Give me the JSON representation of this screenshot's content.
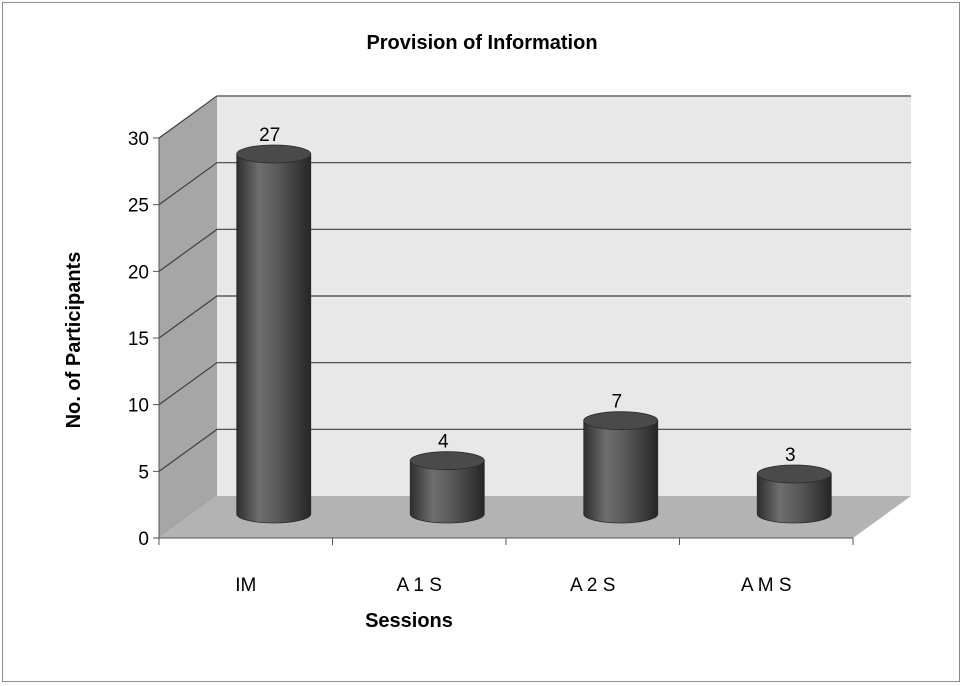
{
  "chart_data": {
    "type": "bar",
    "style": "3d-cylinder",
    "title": "Provision of Information",
    "xlabel": "Sessions",
    "ylabel": "No. of Participants",
    "categories": [
      "IM",
      "A  1 S",
      "A 2 S",
      "A M S"
    ],
    "values": [
      27,
      4,
      7,
      3
    ],
    "data_labels": [
      "27",
      "4",
      "7",
      "3"
    ],
    "ylim": [
      0,
      30
    ],
    "yticks": [
      "0",
      "5",
      "10",
      "15",
      "20",
      "25",
      "30"
    ],
    "grid": true,
    "legend": "none",
    "colors": {
      "bar": "#4a4a4a",
      "wall": "#e8e8e8",
      "side_wall": "#a6a6a6",
      "floor": "#b3b3b3",
      "grid": "#404040"
    }
  }
}
